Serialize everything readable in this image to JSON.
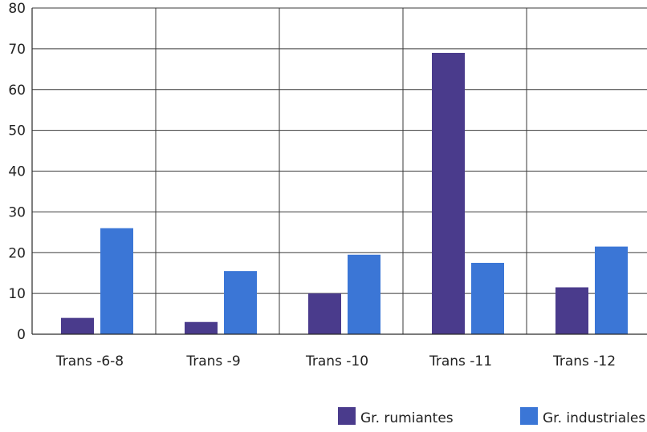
{
  "chart_data": {
    "type": "bar",
    "categories": [
      "Trans -6-8",
      "Trans -9",
      "Trans -10",
      "Trans -11",
      "Trans -12"
    ],
    "series": [
      {
        "name": "Gr. rumiantes",
        "color": "#4a3b8c",
        "values": [
          4,
          3,
          10,
          69,
          11.5
        ]
      },
      {
        "name": "Gr. industriales",
        "color": "#3b76d6",
        "values": [
          26,
          15.5,
          19.5,
          17.5,
          21.5
        ]
      }
    ],
    "ylim": [
      0,
      80
    ],
    "yticks": [
      "0",
      "10",
      "20",
      "30",
      "40",
      "50",
      "60",
      "70",
      "80"
    ],
    "grid": true,
    "legend_position": "bottom-right",
    "title": "",
    "xlabel": "",
    "ylabel": ""
  }
}
